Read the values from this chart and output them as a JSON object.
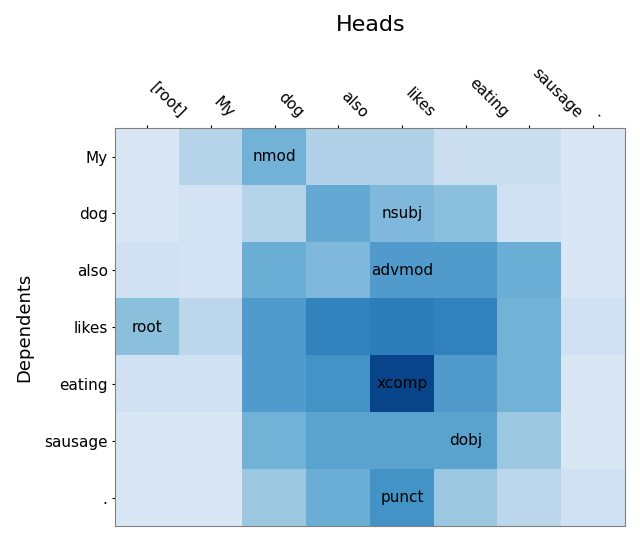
{
  "title": "Heads",
  "ylabel": "Dependents",
  "col_labels": [
    "[root]",
    "My",
    "dog",
    "also",
    "likes",
    "eating",
    "sausage",
    "."
  ],
  "row_labels": [
    "My",
    "dog",
    "also",
    "likes",
    "eating",
    "sausage",
    "."
  ],
  "annotations": [
    {
      "row": 0,
      "col": 2,
      "text": "nmod"
    },
    {
      "row": 1,
      "col": 4,
      "text": "nsubj"
    },
    {
      "row": 2,
      "col": 4,
      "text": "advmod"
    },
    {
      "row": 3,
      "col": 0,
      "text": "root"
    },
    {
      "row": 4,
      "col": 4,
      "text": "xcomp"
    },
    {
      "row": 5,
      "col": 5,
      "text": "dobj"
    },
    {
      "row": 6,
      "col": 4,
      "text": "punct"
    }
  ],
  "matrix": [
    [
      0.15,
      0.3,
      0.48,
      0.32,
      0.32,
      0.22,
      0.22,
      0.15
    ],
    [
      0.15,
      0.18,
      0.3,
      0.52,
      0.45,
      0.42,
      0.2,
      0.15
    ],
    [
      0.2,
      0.18,
      0.5,
      0.45,
      0.58,
      0.58,
      0.5,
      0.15
    ],
    [
      0.42,
      0.28,
      0.58,
      0.68,
      0.7,
      0.68,
      0.48,
      0.2
    ],
    [
      0.2,
      0.2,
      0.58,
      0.62,
      0.92,
      0.58,
      0.48,
      0.15
    ],
    [
      0.15,
      0.15,
      0.48,
      0.55,
      0.55,
      0.55,
      0.38,
      0.15
    ],
    [
      0.15,
      0.15,
      0.38,
      0.5,
      0.62,
      0.38,
      0.28,
      0.2
    ]
  ],
  "cmap": "Blues",
  "figsize": [
    6.4,
    5.41
  ],
  "dpi": 100,
  "title_fontsize": 16,
  "label_fontsize": 13,
  "tick_fontsize": 11,
  "annot_fontsize": 11,
  "vmin": 0.0,
  "vmax": 1.0
}
